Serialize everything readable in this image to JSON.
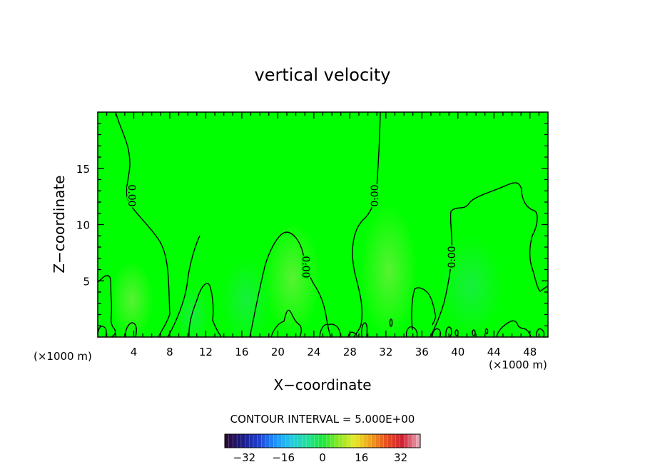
{
  "chart_data": {
    "type": "contour",
    "title": "vertical velocity",
    "xlabel": "X−coordinate",
    "ylabel": "Z−coordinate",
    "x_unit_left": "(×1000 m)",
    "x_unit_right": "(×1000 m)",
    "xlim": [
      0,
      50
    ],
    "ylim": [
      0,
      20
    ],
    "x_ticks": [
      4,
      8,
      12,
      16,
      20,
      24,
      28,
      32,
      36,
      40,
      44,
      48
    ],
    "y_ticks": [
      5,
      10,
      15
    ],
    "contour_interval_text": "CONTOUR INTERVAL = 5.000E+00",
    "contour_labels": [
      "0.00",
      "0.00",
      "0.00",
      "0.00"
    ],
    "colorbar": {
      "range": [
        -40,
        40
      ],
      "ticks": [
        -32,
        -16,
        0,
        16,
        32
      ],
      "tick_labels": [
        "−32",
        "−16",
        "0",
        "16",
        "32"
      ],
      "colors": [
        "#2a0a3a",
        "#1a1a8a",
        "#1f3fd0",
        "#1e90ff",
        "#22c8e8",
        "#20e0a0",
        "#18e838",
        "#8ce81e",
        "#e8e82a",
        "#f0a020",
        "#e85020",
        "#d02030",
        "#e8a0b0"
      ]
    },
    "background_color": "#00ff00",
    "contour_color": "#000000"
  }
}
